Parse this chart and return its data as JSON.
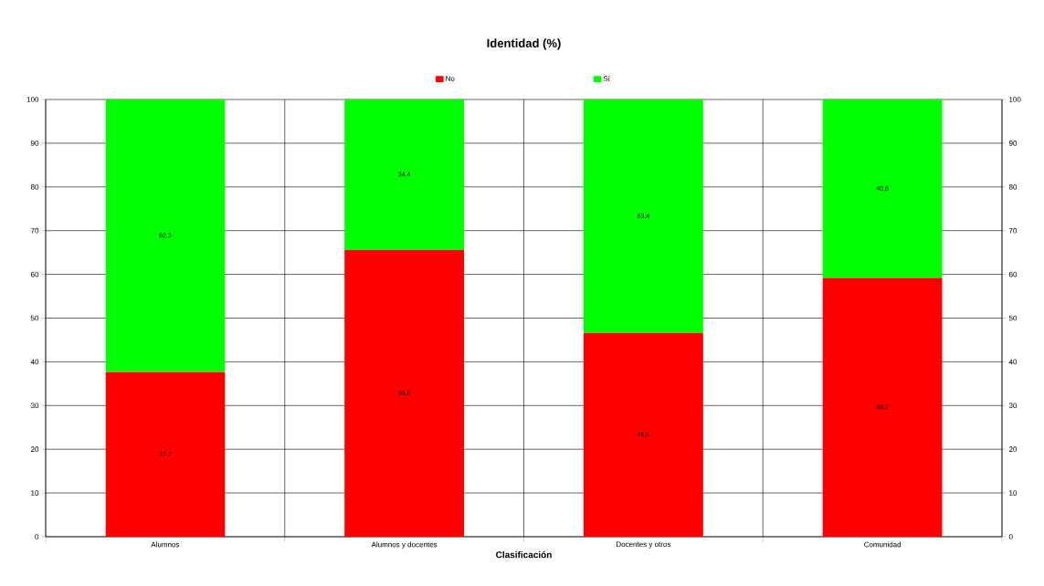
{
  "chart_data": {
    "type": "bar",
    "title": "Identidad (%)",
    "xlabel": "Clasificación",
    "categories": [
      "Alumnos",
      "Alumnos y docentes",
      "Docentes y otros",
      "Comunidad"
    ],
    "stacked": true,
    "series": [
      {
        "name": "No",
        "color": "#ff0000",
        "values": [
          37.7,
          65.6,
          46.6,
          59.2
        ],
        "value_labels": [
          "37,7",
          "65,6",
          "46,6",
          "59,2"
        ]
      },
      {
        "name": "Sí",
        "color": "#00ff00",
        "values": [
          62.3,
          34.4,
          53.4,
          40.8
        ],
        "value_labels": [
          "62,3",
          "34,4",
          "53,4",
          "40,8"
        ]
      }
    ],
    "ylim": [
      0,
      100
    ],
    "yticks": [
      0,
      10,
      20,
      30,
      40,
      50,
      60,
      70,
      80,
      90,
      100
    ],
    "y2lim": [
      0,
      100
    ],
    "y2ticks": [
      0,
      10,
      20,
      30,
      40,
      50,
      60,
      70,
      80,
      90,
      100
    ],
    "grid": true,
    "legend": "top"
  }
}
